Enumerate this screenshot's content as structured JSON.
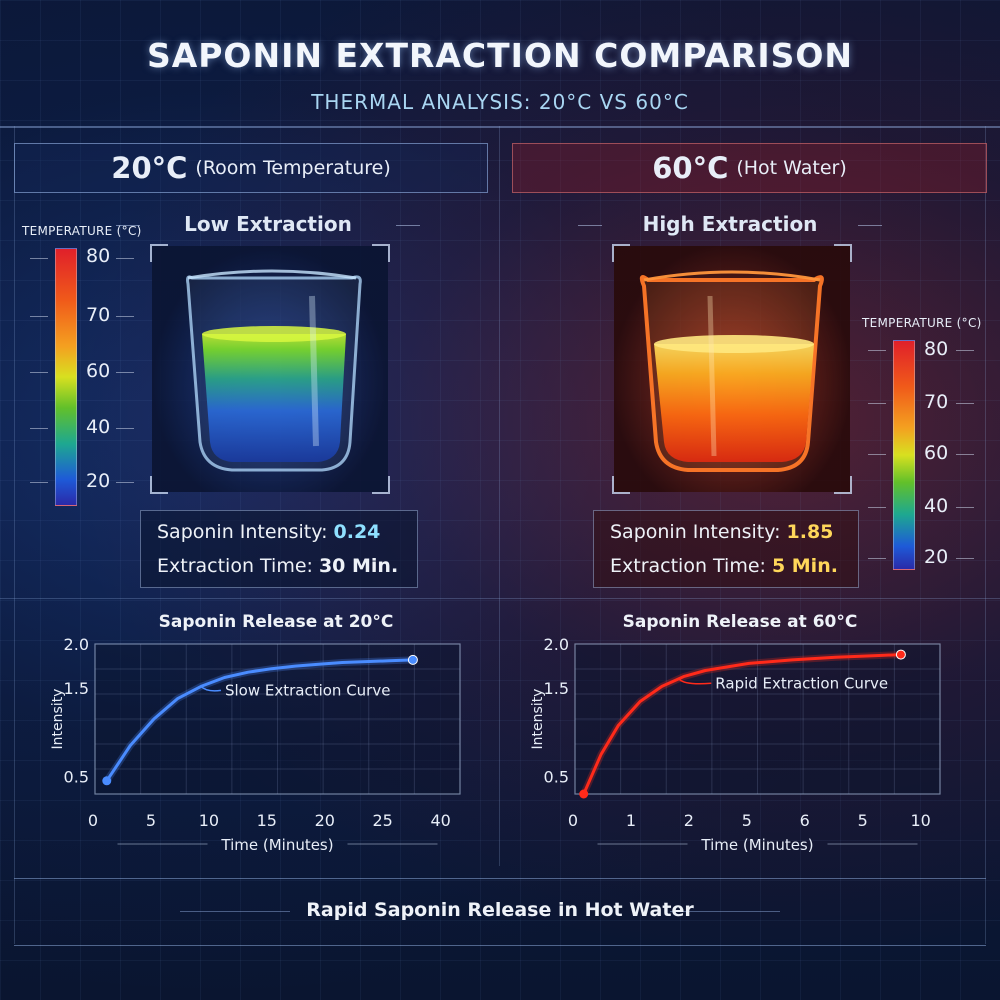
{
  "title": "SAPONIN EXTRACTION COMPARISON",
  "subtitle": "THERMAL ANALYSIS: 20°C VS 60°C",
  "left": {
    "header_temp": "20°C",
    "header_label": "(Room Temperature)",
    "section_title": "Low Extraction",
    "scale_title": "TEMPERATURE (°C)",
    "scale_ticks": [
      "80",
      "70",
      "60",
      "40",
      "20"
    ],
    "intensity_label": "Saponin Intensity:",
    "intensity_value": "0.24",
    "time_label": "Extraction Time:",
    "time_value": "30 Min.",
    "value_color": "#8fe0ff"
  },
  "right": {
    "header_temp": "60°C",
    "header_label": "(Hot Water)",
    "section_title": "High Extraction",
    "scale_title": "TEMPERATURE (°C)",
    "scale_ticks": [
      "80",
      "70",
      "60",
      "40",
      "20"
    ],
    "intensity_label": "Saponin Intensity:",
    "intensity_value": "1.85",
    "time_label": "Extraction Time:",
    "time_value": "5 Min.",
    "value_color": "#ffd75a"
  },
  "chart_data": [
    {
      "type": "line",
      "title": "Saponin Release at 20°C",
      "xlabel": "Time (Minutes)",
      "ylabel": "Intensity",
      "x_tick_labels": [
        "0",
        "5",
        "10",
        "15",
        "20",
        "25",
        "40"
      ],
      "y_tick_labels": [
        "0.5",
        "1.5",
        "2.0"
      ],
      "annotation": "Slow Extraction Curve",
      "color": "#4a8cff",
      "grid": true,
      "series": [
        {
          "x": [
            1,
            3,
            5,
            7,
            9,
            11,
            13,
            15,
            17,
            19,
            21,
            23,
            25,
            27
          ],
          "y": [
            0.45,
            0.85,
            1.15,
            1.38,
            1.52,
            1.62,
            1.68,
            1.72,
            1.75,
            1.77,
            1.79,
            1.8,
            1.81,
            1.82
          ]
        }
      ]
    },
    {
      "type": "line",
      "title": "Saponin Release at 60°C",
      "xlabel": "Time (Minutes)",
      "ylabel": "Intensity",
      "x_tick_labels": [
        "0",
        "1",
        "2",
        "5",
        "6",
        "5",
        "10"
      ],
      "y_tick_labels": [
        "0.5",
        "1.5",
        "2.0"
      ],
      "annotation": "Rapid Extraction Curve",
      "color": "#ff2a1a",
      "grid": true,
      "series": [
        {
          "x": [
            0.2,
            0.6,
            1.0,
            1.5,
            2.0,
            2.5,
            3.0,
            4.0,
            5.0,
            6.0,
            7.0,
            7.5
          ],
          "y": [
            0.3,
            0.75,
            1.08,
            1.35,
            1.52,
            1.63,
            1.7,
            1.78,
            1.82,
            1.85,
            1.87,
            1.88
          ]
        }
      ]
    }
  ],
  "footer": "Rapid Saponin Release in Hot Water"
}
